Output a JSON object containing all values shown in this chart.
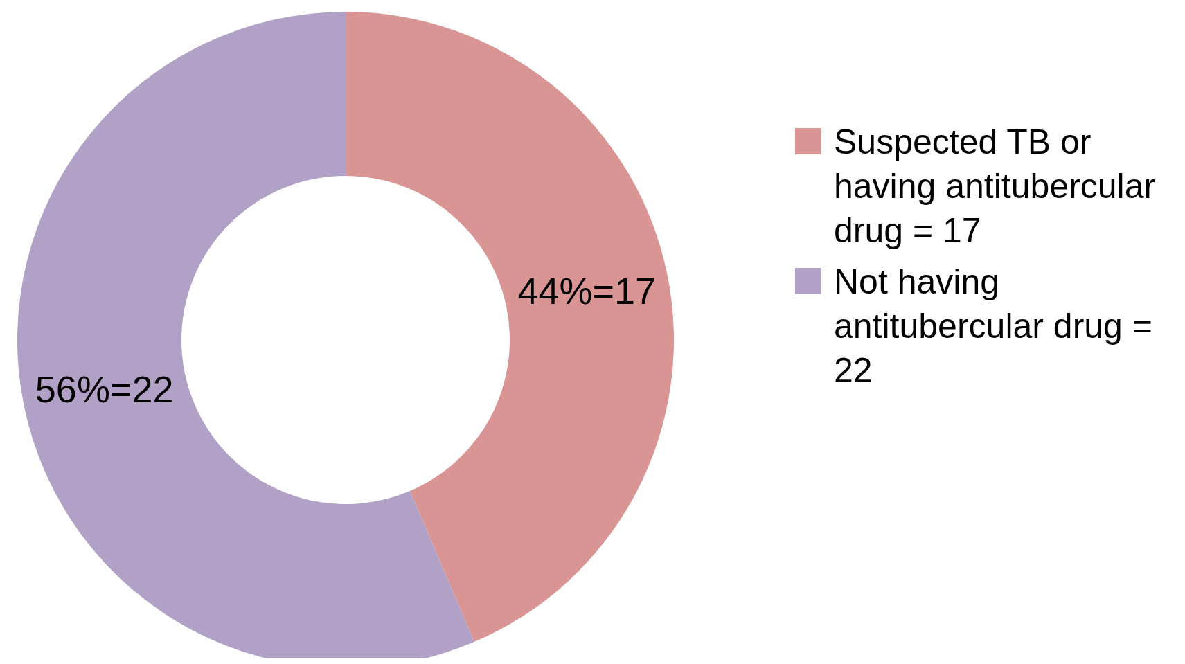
{
  "chart_data": {
    "type": "donut",
    "categories": [
      "Suspected TB or having antitubercular drug = 17",
      "Not having antitubercular drug = 22"
    ],
    "values": [
      17,
      22
    ],
    "colors": [
      "#d99594",
      "#b2a1c7"
    ],
    "value_labels": [
      "44%=17",
      "56%=22"
    ],
    "legend": "right"
  }
}
